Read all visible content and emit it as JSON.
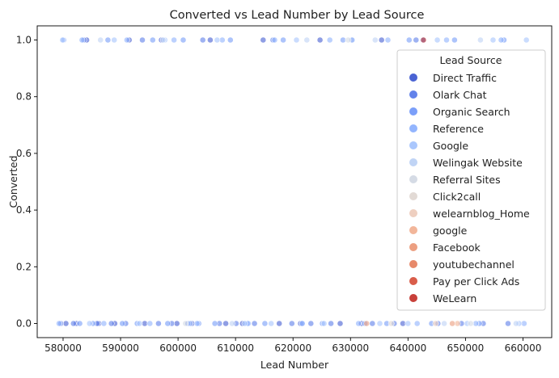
{
  "chart_data": {
    "type": "scatter",
    "title": "Converted vs Lead Number by Lead Source",
    "xlabel": "Lead Number",
    "ylabel": "Converted",
    "xlim": [
      575500,
      665000
    ],
    "ylim": [
      -0.05,
      1.05
    ],
    "xticks": [
      580000,
      590000,
      600000,
      610000,
      620000,
      630000,
      640000,
      650000,
      660000
    ],
    "xtick_labels": [
      "580000",
      "590000",
      "600000",
      "610000",
      "620000",
      "630000",
      "640000",
      "650000",
      "660000"
    ],
    "yticks": [
      0.0,
      0.2,
      0.4,
      0.6,
      0.8,
      1.0
    ],
    "ytick_labels": [
      "0.0",
      "0.2",
      "0.4",
      "0.6",
      "0.8",
      "1.0"
    ],
    "grid": false,
    "legend_title": "Lead Source",
    "legend_position": "right",
    "series": [
      {
        "name": "Direct Traffic",
        "color": "#4a63d3",
        "x": [
          580500,
          582300,
          584100,
          586200,
          589000,
          591500,
          594200,
          597100,
          599800,
          602400,
          605600,
          608300,
          611200,
          614800,
          617600,
          621300,
          624700,
          628200,
          631900,
          635400,
          639100,
          642600
        ],
        "y": [
          0,
          0,
          1,
          0,
          0,
          1,
          0,
          1,
          0,
          0,
          1,
          0,
          0,
          1,
          0,
          0,
          1,
          0,
          0,
          1,
          0,
          1
        ]
      },
      {
        "name": "Olark Chat",
        "color": "#6282ea",
        "x": [
          579600,
          581800,
          583600,
          585900,
          588400,
          590900,
          593800,
          596600,
          598900,
          601700,
          604300,
          607200,
          610100,
          613300,
          616500,
          619800,
          623100,
          626600,
          630200,
          633800,
          637600,
          641400,
          645200,
          649300,
          653100,
          657400
        ],
        "y": [
          0,
          0,
          1,
          0,
          0,
          0,
          1,
          0,
          0,
          0,
          1,
          0,
          0,
          0,
          1,
          0,
          0,
          0,
          1,
          0,
          0,
          1,
          0,
          0,
          0,
          0
        ]
      },
      {
        "name": "Organic Search",
        "color": "#7b9ff9",
        "x": [
          580100,
          582900,
          585200,
          587800,
          590300,
          592900,
          595600,
          598200,
          600900,
          603600,
          606400,
          609100,
          612000,
          615100,
          618300,
          621600,
          625100,
          628700,
          632500,
          636300,
          640200,
          644100,
          648100,
          652400,
          656700
        ],
        "y": [
          1,
          0,
          0,
          1,
          0,
          0,
          1,
          0,
          1,
          0,
          0,
          1,
          0,
          0,
          1,
          0,
          0,
          1,
          0,
          0,
          1,
          0,
          1,
          0,
          1
        ]
      },
      {
        "name": "Reference",
        "color": "#93b5fe",
        "x": [
          579300,
          583300,
          587100,
          591100,
          595100,
          599300,
          603300,
          607700,
          612200,
          616800,
          621600,
          626400,
          631400,
          636500,
          641600,
          646700,
          651800,
          656200,
          660200
        ],
        "y": [
          0,
          1,
          0,
          1,
          0,
          1,
          0,
          1,
          0,
          1,
          0,
          1,
          0,
          1,
          0,
          1,
          0,
          1,
          0
        ]
      },
      {
        "name": "Google",
        "color": "#aac7fd",
        "x": [
          579900,
          584600,
          588900,
          593300,
          597700,
          602100,
          606800,
          611600,
          616200,
          620600,
          625400,
          630300,
          635100,
          640000,
          645100,
          650300,
          654800,
          659300,
          660600
        ],
        "y": [
          1,
          0,
          1,
          0,
          1,
          0,
          1,
          0,
          0,
          1,
          0,
          1,
          0,
          0,
          1,
          0,
          1,
          0,
          1
        ]
      },
      {
        "name": "Welingak Website",
        "color": "#c0d4f5",
        "x": [
          586500,
          597400,
          609400,
          622400,
          634300,
          646300,
          652600,
          658800
        ],
        "y": [
          1,
          1,
          0,
          1,
          1,
          0,
          1,
          0
        ]
      },
      {
        "name": "Referral Sites",
        "color": "#d5dbe5",
        "x": [
          601300,
          629600,
          650900
        ],
        "y": [
          0,
          1,
          0
        ]
      },
      {
        "name": "Click2call",
        "color": "#e2dad5",
        "x": [
          637100
        ],
        "y": [
          0
        ]
      },
      {
        "name": "welearnblog_Home",
        "color": "#eecfc0",
        "x": [
          644800
        ],
        "y": [
          0
        ]
      },
      {
        "name": "google",
        "color": "#f2b69a",
        "x": [
          648600
        ],
        "y": [
          0
        ]
      },
      {
        "name": "Facebook",
        "color": "#ec9f81",
        "x": [
          632800,
          647700
        ],
        "y": [
          0,
          0
        ]
      },
      {
        "name": "youtubechannel",
        "color": "#e7896a",
        "x": [],
        "y": []
      },
      {
        "name": "Pay per Click Ads",
        "color": "#d95d4a",
        "x": [],
        "y": []
      },
      {
        "name": "WeLearn",
        "color": "#c8403a",
        "x": [
          642700
        ],
        "y": [
          1
        ]
      }
    ]
  }
}
